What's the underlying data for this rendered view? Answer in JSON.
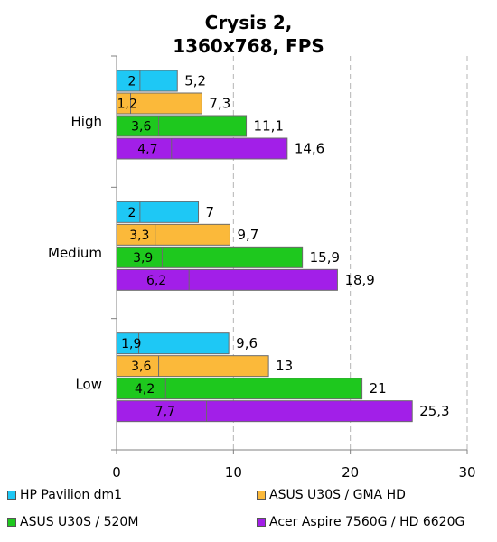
{
  "chart_data": {
    "type": "bar",
    "orientation": "horizontal",
    "stacked_overlay": true,
    "title_lines": [
      "Crysis 2,",
      "1360x768, FPS"
    ],
    "categories": [
      "High",
      "Medium",
      "Low"
    ],
    "xlim": [
      0,
      30
    ],
    "xticks": [
      0,
      10,
      20,
      30
    ],
    "grid": true,
    "legend_position": "bottom",
    "series": [
      {
        "name": "HP Pavilion dm1",
        "color": "#1ec8f5",
        "min": [
          2,
          2,
          1.9
        ],
        "avg": [
          5.2,
          7,
          9.6
        ],
        "min_labels": [
          "2",
          "2",
          "1,9"
        ],
        "avg_labels": [
          "5,2",
          "7",
          "9,6"
        ]
      },
      {
        "name": "ASUS U30S / GMA HD",
        "color": "#fbb93a",
        "min": [
          1.2,
          3.3,
          3.6
        ],
        "avg": [
          7.3,
          9.7,
          13
        ],
        "min_labels": [
          "1,2",
          "3,3",
          "3,6"
        ],
        "avg_labels": [
          "7,3",
          "9,7",
          "13"
        ]
      },
      {
        "name": "ASUS U30S / 520M",
        "color": "#1ec81e",
        "min": [
          3.6,
          3.9,
          4.2
        ],
        "avg": [
          11.1,
          15.9,
          21
        ],
        "min_labels": [
          "3,6",
          "3,9",
          "4,2"
        ],
        "avg_labels": [
          "11,1",
          "15,9",
          "21"
        ]
      },
      {
        "name": "Acer Aspire 7560G / HD 6620G",
        "color": "#a21fe8",
        "min": [
          4.7,
          6.2,
          7.7
        ],
        "avg": [
          14.6,
          18.9,
          25.3
        ],
        "min_labels": [
          "4,7",
          "6,2",
          "7,7"
        ],
        "avg_labels": [
          "14,6",
          "18,9",
          "25,3"
        ]
      }
    ]
  },
  "legend": {
    "items": [
      {
        "label": "HP Pavilion dm1",
        "color": "#1ec8f5"
      },
      {
        "label": "ASUS U30S / GMA HD",
        "color": "#fbb93a"
      },
      {
        "label": "ASUS U30S / 520M",
        "color": "#1ec81e"
      },
      {
        "label": "Acer Aspire 7560G / HD 6620G",
        "color": "#a21fe8"
      }
    ]
  }
}
